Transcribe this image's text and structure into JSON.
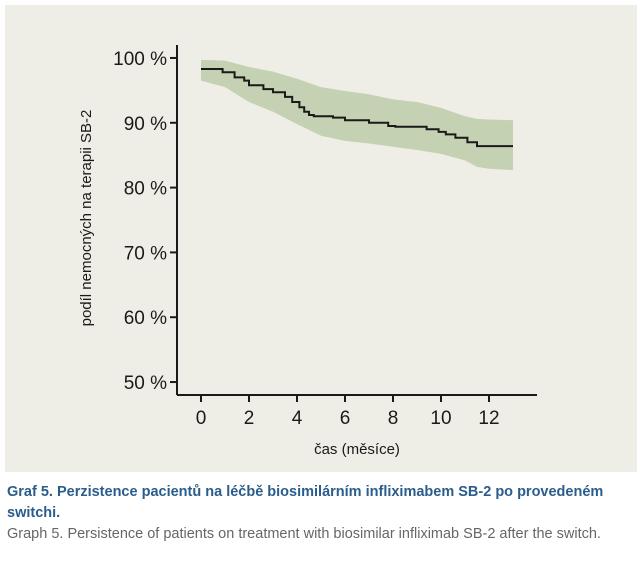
{
  "chart_data": {
    "type": "line",
    "title": "",
    "xlabel": "čas (měsíce)",
    "ylabel": "podíl nemocných na terapii SB-2",
    "xlim": [
      -1,
      14
    ],
    "ylim": [
      48,
      102
    ],
    "x_ticks": [
      0,
      2,
      4,
      6,
      8,
      10,
      12
    ],
    "x_tick_labels": [
      "0",
      "2",
      "4",
      "6",
      "8",
      "10",
      "12"
    ],
    "y_ticks": [
      50,
      60,
      70,
      80,
      90,
      100
    ],
    "y_tick_labels": [
      "50 %",
      "60 %",
      "70 %",
      "80 %",
      "90 %",
      "100 %"
    ],
    "grid": false,
    "series": [
      {
        "step": true,
        "color": "#1a1a1a",
        "x": [
          0,
          0.9,
          1.4,
          1.8,
          2.0,
          2.6,
          3.0,
          3.5,
          3.8,
          4.1,
          4.3,
          4.5,
          4.7,
          5.0,
          5.5,
          6.0,
          7.0,
          7.8,
          8.1,
          9.0,
          9.4,
          9.9,
          10.2,
          10.6,
          11.1,
          11.5,
          13.0
        ],
        "y": [
          98.3,
          97.8,
          97.0,
          96.5,
          95.8,
          95.2,
          94.7,
          94.0,
          93.2,
          92.4,
          91.7,
          91.2,
          91.0,
          91.0,
          90.8,
          90.4,
          90.0,
          89.5,
          89.4,
          89.4,
          89.0,
          88.6,
          88.2,
          87.7,
          87.0,
          86.4,
          86.4
        ]
      }
    ],
    "confidence_band": {
      "color": "#c5d1b3",
      "x": [
        0,
        1,
        2,
        3,
        4,
        5,
        6,
        7,
        8,
        9,
        10,
        11,
        11.5,
        12,
        13
      ],
      "lower": [
        96.5,
        95.5,
        93.2,
        91.7,
        89.8,
        88.0,
        87.2,
        86.8,
        86.3,
        85.8,
        85.2,
        84.2,
        83.2,
        82.9,
        82.7
      ],
      "upper": [
        99.7,
        99.6,
        98.6,
        97.9,
        96.8,
        95.5,
        94.9,
        94.4,
        93.6,
        93.2,
        92.3,
        91.0,
        90.6,
        90.5,
        90.4
      ]
    }
  },
  "caption": {
    "czech": "Graf 5. Perzistence pacientů na léčbě biosimilárním infliximabem SB-2 po provedeném switchi.",
    "english": "Graph 5. Persistence of patients on treatment with biosimilar infliximab SB-2 after the switch."
  }
}
